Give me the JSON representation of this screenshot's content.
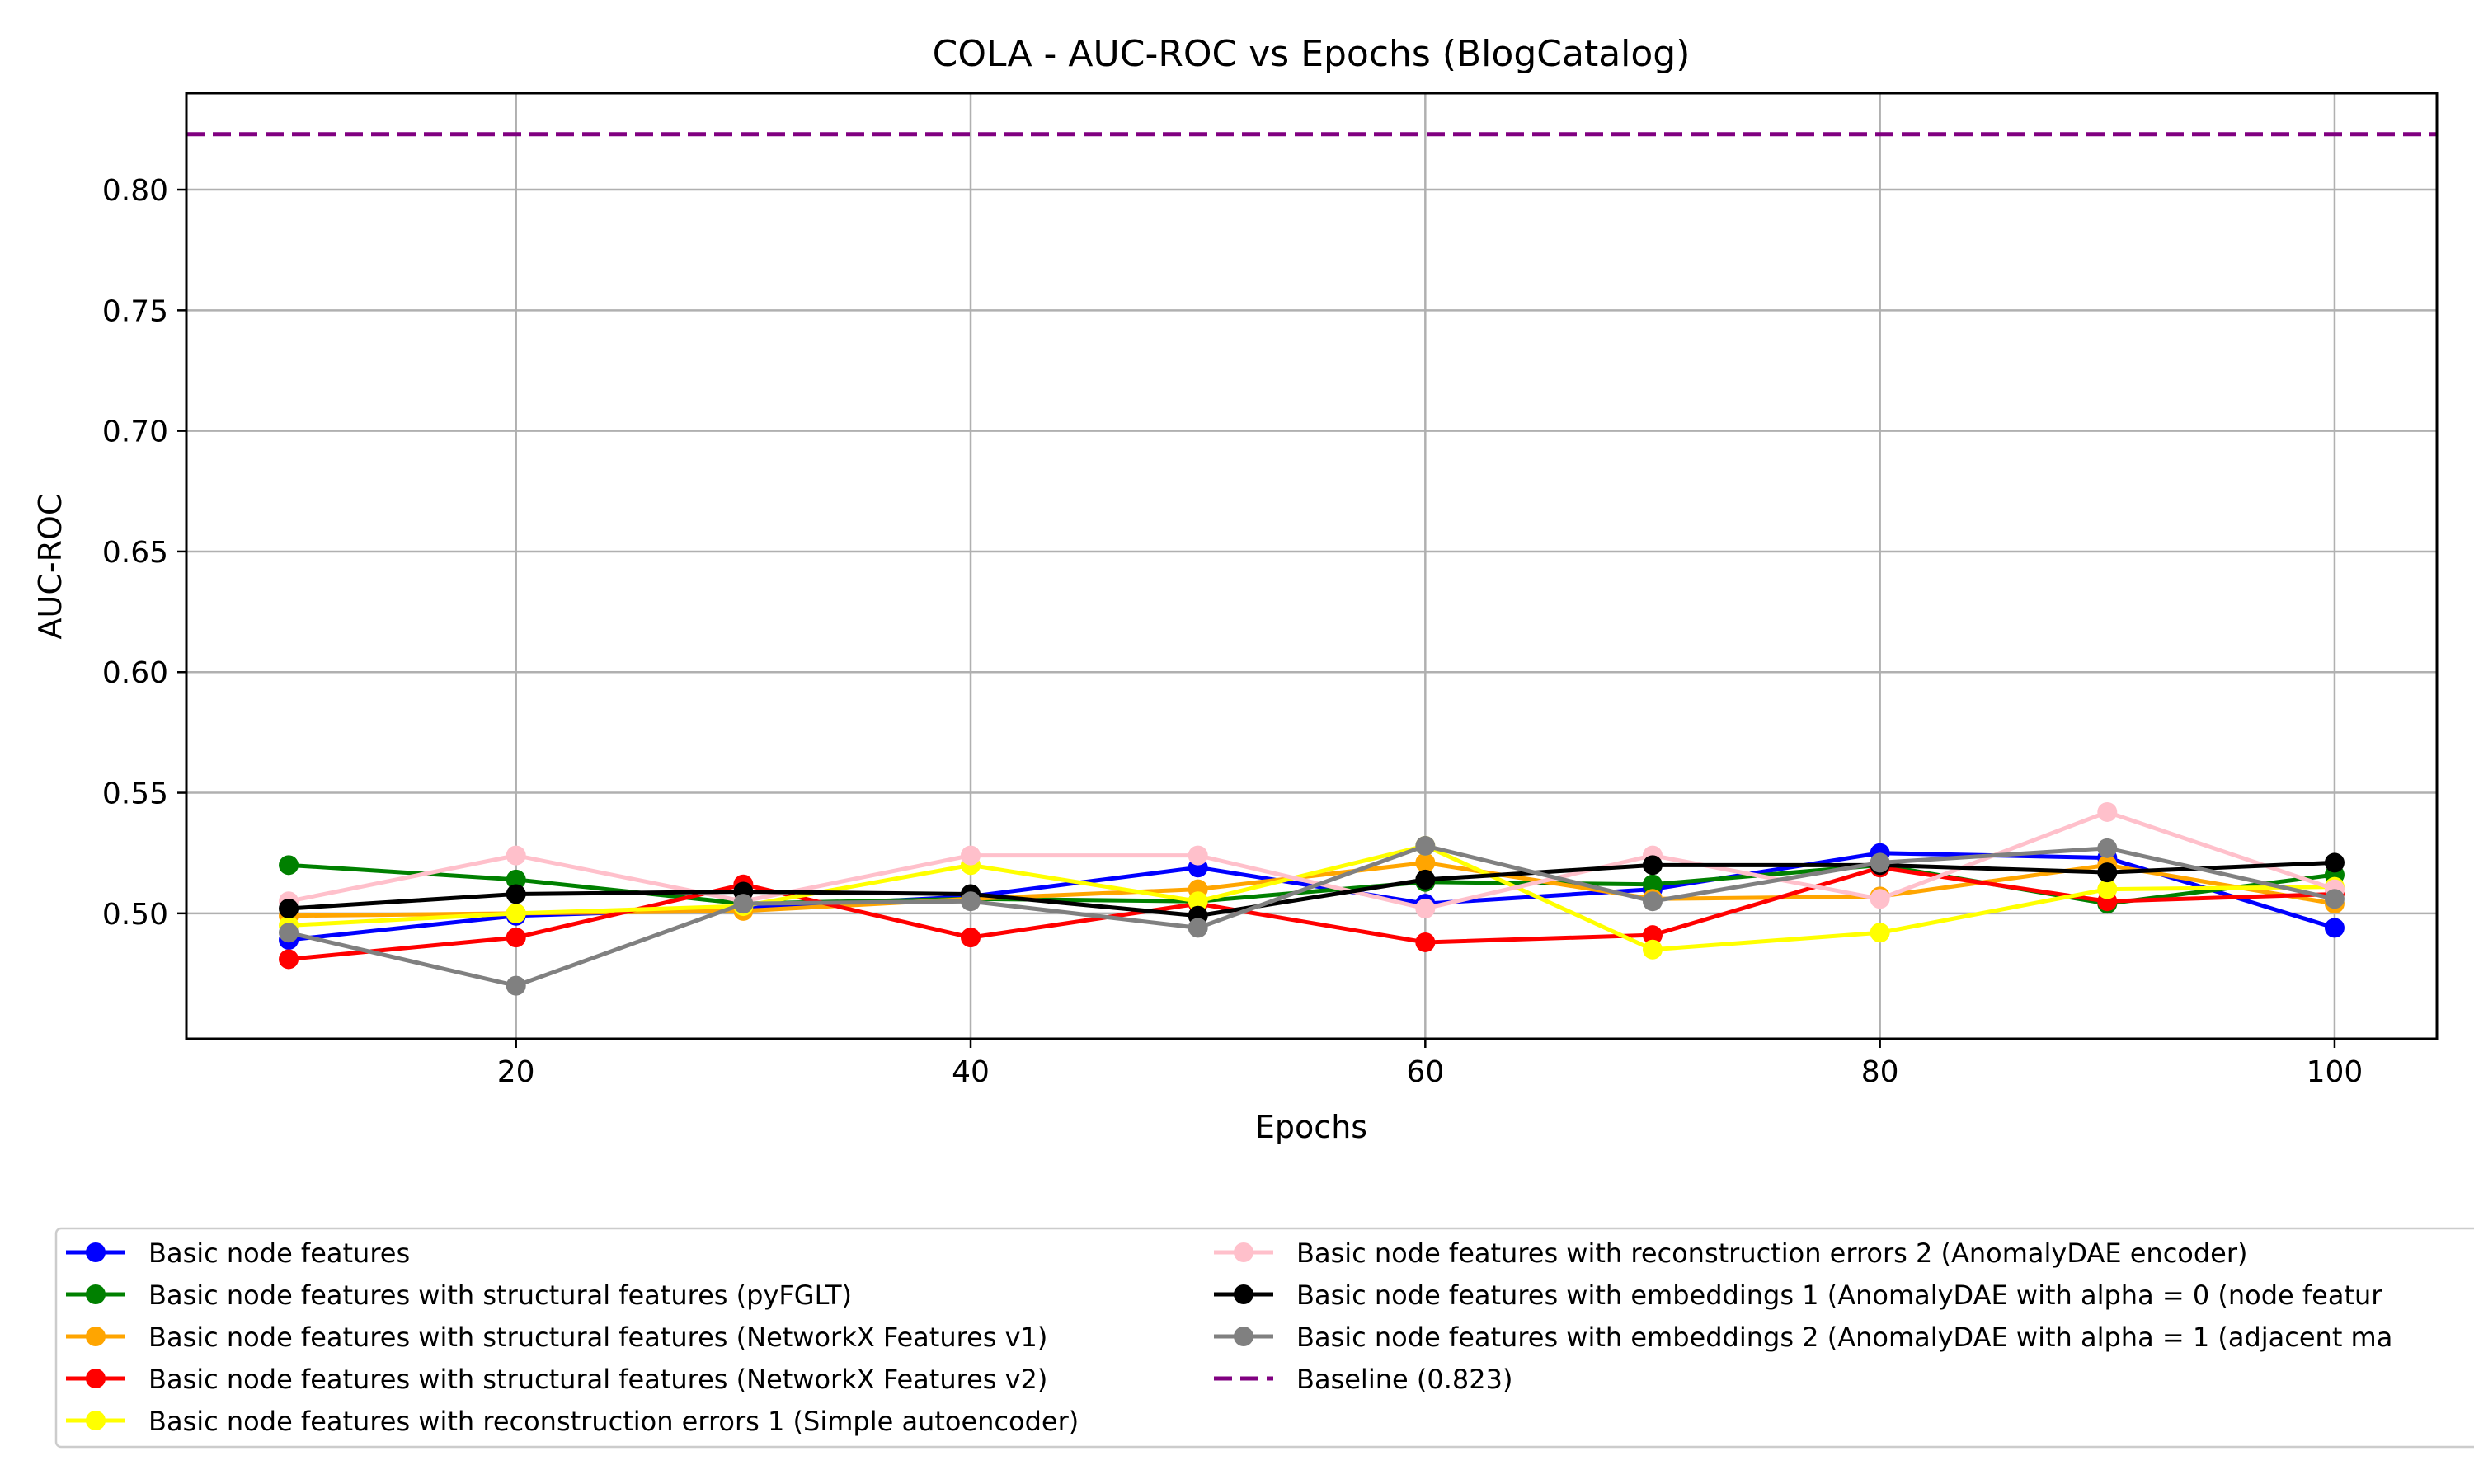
{
  "chart_data": {
    "type": "line",
    "title": "COLA - AUC-ROC vs Epochs (BlogCatalog)",
    "xlabel": "Epochs",
    "ylabel": "AUC-ROC",
    "xlim": [
      5.5,
      104.5
    ],
    "ylim": [
      0.448,
      0.84
    ],
    "xticks": [
      20,
      40,
      60,
      80,
      100
    ],
    "xtick_labels": [
      "20",
      "40",
      "60",
      "80",
      "100"
    ],
    "yticks": [
      0.5,
      0.55,
      0.6,
      0.65,
      0.7,
      0.75,
      0.8
    ],
    "ytick_labels": [
      "0.50",
      "0.55",
      "0.60",
      "0.65",
      "0.70",
      "0.75",
      "0.80"
    ],
    "grid": true,
    "legend_position": "below plot, two columns",
    "x": [
      10,
      20,
      30,
      40,
      50,
      60,
      70,
      80,
      90,
      100
    ],
    "series": [
      {
        "name": "Basic node features",
        "color": "#0000ff",
        "values": [
          0.489,
          0.499,
          0.502,
          0.507,
          0.519,
          0.504,
          0.51,
          0.525,
          0.523,
          0.494
        ]
      },
      {
        "name": "Basic node features with structural features (pyFGLT)",
        "color": "#008000",
        "values": [
          0.52,
          0.514,
          0.504,
          0.506,
          0.505,
          0.513,
          0.512,
          0.52,
          0.504,
          0.516
        ]
      },
      {
        "name": "Basic node features with structural features (NetworkX Features v1)",
        "color": "#ffa500",
        "values": [
          0.499,
          0.5,
          0.501,
          0.506,
          0.51,
          0.521,
          0.506,
          0.507,
          0.52,
          0.504
        ]
      },
      {
        "name": "Basic node features with structural features (NetworkX Features v2)",
        "color": "#ff0000",
        "values": [
          0.481,
          0.49,
          0.512,
          0.49,
          0.504,
          0.488,
          0.491,
          0.519,
          0.505,
          0.508
        ]
      },
      {
        "name": "Basic node features with reconstruction errors 1 (Simple autoencoder)",
        "color": "#ffff00",
        "values": [
          0.495,
          0.5,
          0.503,
          0.52,
          0.505,
          0.528,
          0.485,
          0.492,
          0.51,
          0.511
        ]
      },
      {
        "name": "Basic node features with reconstruction errors 2 (AnomalyDAE encoder)",
        "color": "#ffc0cb",
        "values": [
          0.505,
          0.524,
          0.505,
          0.524,
          0.524,
          0.502,
          0.524,
          0.506,
          0.542,
          0.51
        ]
      },
      {
        "name": "Basic node features with embeddings 1 (AnomalyDAE with alpha = 0 (node featur",
        "color": "#000000",
        "values": [
          0.502,
          0.508,
          0.509,
          0.508,
          0.499,
          0.514,
          0.52,
          0.52,
          0.517,
          0.521
        ]
      },
      {
        "name": "Basic node features with embeddings 2 (AnomalyDAE with alpha = 1 (adjacent ma",
        "color": "#808080",
        "values": [
          0.492,
          0.47,
          0.504,
          0.505,
          0.494,
          0.528,
          0.505,
          0.521,
          0.527,
          0.506
        ]
      }
    ],
    "baseline": {
      "name": "Baseline (0.823)",
      "value": 0.823,
      "color": "#800080",
      "style": "dashed"
    }
  }
}
